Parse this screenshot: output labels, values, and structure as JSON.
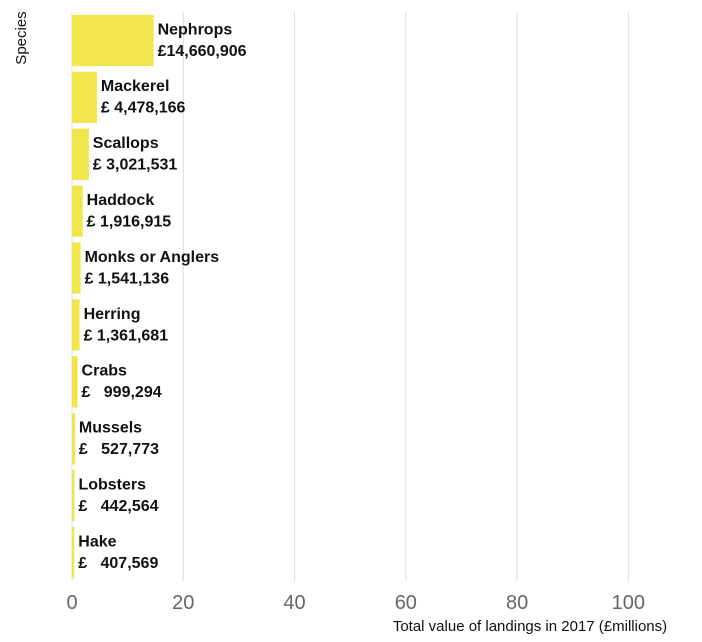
{
  "chart_data": {
    "type": "bar",
    "orientation": "horizontal",
    "ylabel": "Species",
    "xlabel": "Total value of landings in 2017 (£millions)",
    "xlim": [
      0,
      110
    ],
    "xticks": [
      0,
      20,
      40,
      60,
      80,
      100
    ],
    "grid": "vertical",
    "bar_color": "#f0e54b",
    "categories": [
      "Nephrops",
      "Mackerel",
      "Scallops",
      "Haddock",
      "Monks or Anglers",
      "Herring",
      "Crabs",
      "Mussels",
      "Lobsters",
      "Hake"
    ],
    "values": [
      14.660906,
      4.478166,
      3.021531,
      1.916915,
      1.541136,
      1.361681,
      0.999294,
      0.527773,
      0.442564,
      0.407569
    ],
    "value_labels": [
      "£14,660,906",
      "£ 4,478,166",
      "£ 3,021,531",
      "£ 1,916,915",
      "£ 1,541,136",
      "£ 1,361,681",
      "£   999,294",
      "£   527,773",
      "£   442,564",
      "£   407,569"
    ]
  }
}
